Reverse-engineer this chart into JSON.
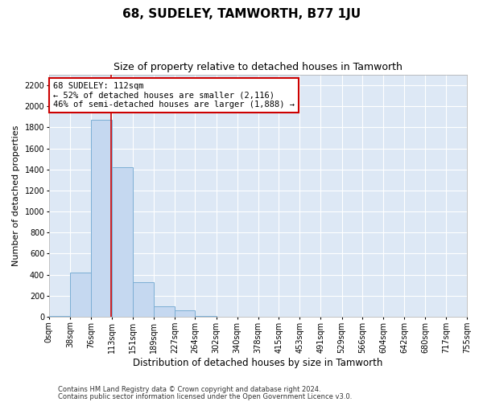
{
  "title": "68, SUDELEY, TAMWORTH, B77 1JU",
  "subtitle": "Size of property relative to detached houses in Tamworth",
  "xlabel": "Distribution of detached houses by size in Tamworth",
  "ylabel": "Number of detached properties",
  "footer_line1": "Contains HM Land Registry data © Crown copyright and database right 2024.",
  "footer_line2": "Contains public sector information licensed under the Open Government Licence v3.0.",
  "annotation_line1": "68 SUDELEY: 112sqm",
  "annotation_line2": "← 52% of detached houses are smaller (2,116)",
  "annotation_line3": "46% of semi-detached houses are larger (1,888) →",
  "property_size": 112,
  "bin_edges": [
    0,
    38,
    76,
    113,
    151,
    189,
    227,
    264,
    302,
    340,
    378,
    415,
    453,
    491,
    529,
    566,
    604,
    642,
    680,
    717,
    755
  ],
  "bar_heights": [
    10,
    420,
    1870,
    1420,
    330,
    100,
    60,
    5,
    0,
    0,
    0,
    0,
    0,
    0,
    0,
    0,
    0,
    0,
    0,
    0
  ],
  "bar_color": "#c5d8f0",
  "bar_edge_color": "#7baed4",
  "vline_color": "#cc0000",
  "background_color": "#dde8f5",
  "ylim": [
    0,
    2300
  ],
  "yticks": [
    0,
    200,
    400,
    600,
    800,
    1000,
    1200,
    1400,
    1600,
    1800,
    2000,
    2200
  ],
  "tick_labels": [
    "0sqm",
    "38sqm",
    "76sqm",
    "113sqm",
    "151sqm",
    "189sqm",
    "227sqm",
    "264sqm",
    "302sqm",
    "340sqm",
    "378sqm",
    "415sqm",
    "453sqm",
    "491sqm",
    "529sqm",
    "566sqm",
    "604sqm",
    "642sqm",
    "680sqm",
    "717sqm",
    "755sqm"
  ],
  "title_fontsize": 11,
  "subtitle_fontsize": 9,
  "ylabel_fontsize": 8,
  "xlabel_fontsize": 8.5,
  "tick_fontsize": 7,
  "footer_fontsize": 6,
  "annotation_fontsize": 7.5
}
